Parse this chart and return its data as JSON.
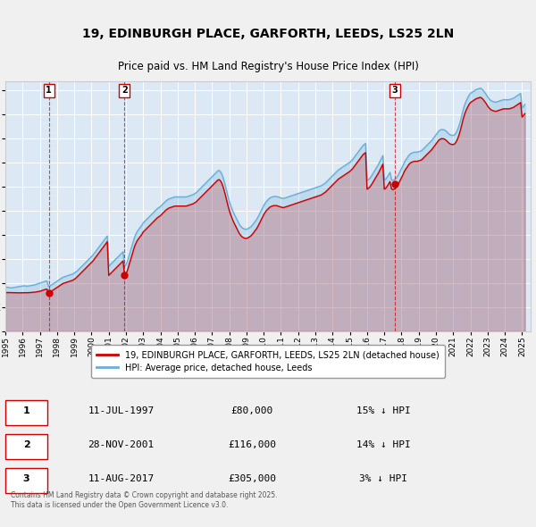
{
  "title": "19, EDINBURGH PLACE, GARFORTH, LEEDS, LS25 2LN",
  "subtitle": "Price paid vs. HM Land Registry's House Price Index (HPI)",
  "ylim": [
    0,
    520000
  ],
  "xlim_start": 1995.0,
  "xlim_end": 2025.5,
  "background_color": "#dce9f5",
  "grid_color": "#ffffff",
  "hpi_color": "#6baed6",
  "price_color": "#cc0000",
  "sale_dates": [
    1997.53,
    2001.91,
    2017.61
  ],
  "sale_prices": [
    80000,
    116000,
    305000
  ],
  "sale_labels": [
    "1",
    "2",
    "3"
  ],
  "legend_line1": "19, EDINBURGH PLACE, GARFORTH, LEEDS, LS25 2LN (detached house)",
  "legend_line2": "HPI: Average price, detached house, Leeds",
  "table_entries": [
    {
      "label": "1",
      "date": "11-JUL-1997",
      "price": "£80,000",
      "hpi": "15% ↓ HPI"
    },
    {
      "label": "2",
      "date": "28-NOV-2001",
      "price": "£116,000",
      "hpi": "14% ↓ HPI"
    },
    {
      "label": "3",
      "date": "11-AUG-2017",
      "price": "£305,000",
      "hpi": "3% ↓ HPI"
    }
  ],
  "footnote": "Contains HM Land Registry data © Crown copyright and database right 2025.\nThis data is licensed under the Open Government Licence v3.0.",
  "hpi_years": [
    1995.0,
    1995.083,
    1995.167,
    1995.25,
    1995.333,
    1995.417,
    1995.5,
    1995.583,
    1995.667,
    1995.75,
    1995.833,
    1995.917,
    1996.0,
    1996.083,
    1996.167,
    1996.25,
    1996.333,
    1996.417,
    1996.5,
    1996.583,
    1996.667,
    1996.75,
    1996.833,
    1996.917,
    1997.0,
    1997.083,
    1997.167,
    1997.25,
    1997.333,
    1997.417,
    1997.5,
    1997.583,
    1997.667,
    1997.75,
    1997.833,
    1997.917,
    1998.0,
    1998.083,
    1998.167,
    1998.25,
    1998.333,
    1998.417,
    1998.5,
    1998.583,
    1998.667,
    1998.75,
    1998.833,
    1998.917,
    1999.0,
    1999.083,
    1999.167,
    1999.25,
    1999.333,
    1999.417,
    1999.5,
    1999.583,
    1999.667,
    1999.75,
    1999.833,
    1999.917,
    2000.0,
    2000.083,
    2000.167,
    2000.25,
    2000.333,
    2000.417,
    2000.5,
    2000.583,
    2000.667,
    2000.75,
    2000.833,
    2000.917,
    2001.0,
    2001.083,
    2001.167,
    2001.25,
    2001.333,
    2001.417,
    2001.5,
    2001.583,
    2001.667,
    2001.75,
    2001.833,
    2001.917,
    2002.0,
    2002.083,
    2002.167,
    2002.25,
    2002.333,
    2002.417,
    2002.5,
    2002.583,
    2002.667,
    2002.75,
    2002.833,
    2002.917,
    2003.0,
    2003.083,
    2003.167,
    2003.25,
    2003.333,
    2003.417,
    2003.5,
    2003.583,
    2003.667,
    2003.75,
    2003.833,
    2003.917,
    2004.0,
    2004.083,
    2004.167,
    2004.25,
    2004.333,
    2004.417,
    2004.5,
    2004.583,
    2004.667,
    2004.75,
    2004.833,
    2004.917,
    2005.0,
    2005.083,
    2005.167,
    2005.25,
    2005.333,
    2005.417,
    2005.5,
    2005.583,
    2005.667,
    2005.75,
    2005.833,
    2005.917,
    2006.0,
    2006.083,
    2006.167,
    2006.25,
    2006.333,
    2006.417,
    2006.5,
    2006.583,
    2006.667,
    2006.75,
    2006.833,
    2006.917,
    2007.0,
    2007.083,
    2007.167,
    2007.25,
    2007.333,
    2007.417,
    2007.5,
    2007.583,
    2007.667,
    2007.75,
    2007.833,
    2007.917,
    2008.0,
    2008.083,
    2008.167,
    2008.25,
    2008.333,
    2008.417,
    2008.5,
    2008.583,
    2008.667,
    2008.75,
    2008.833,
    2008.917,
    2009.0,
    2009.083,
    2009.167,
    2009.25,
    2009.333,
    2009.417,
    2009.5,
    2009.583,
    2009.667,
    2009.75,
    2009.833,
    2009.917,
    2010.0,
    2010.083,
    2010.167,
    2010.25,
    2010.333,
    2010.417,
    2010.5,
    2010.583,
    2010.667,
    2010.75,
    2010.833,
    2010.917,
    2011.0,
    2011.083,
    2011.167,
    2011.25,
    2011.333,
    2011.417,
    2011.5,
    2011.583,
    2011.667,
    2011.75,
    2011.833,
    2011.917,
    2012.0,
    2012.083,
    2012.167,
    2012.25,
    2012.333,
    2012.417,
    2012.5,
    2012.583,
    2012.667,
    2012.75,
    2012.833,
    2012.917,
    2013.0,
    2013.083,
    2013.167,
    2013.25,
    2013.333,
    2013.417,
    2013.5,
    2013.583,
    2013.667,
    2013.75,
    2013.833,
    2013.917,
    2014.0,
    2014.083,
    2014.167,
    2014.25,
    2014.333,
    2014.417,
    2014.5,
    2014.583,
    2014.667,
    2014.75,
    2014.833,
    2014.917,
    2015.0,
    2015.083,
    2015.167,
    2015.25,
    2015.333,
    2015.417,
    2015.5,
    2015.583,
    2015.667,
    2015.75,
    2015.833,
    2015.917,
    2016.0,
    2016.083,
    2016.167,
    2016.25,
    2016.333,
    2016.417,
    2016.5,
    2016.583,
    2016.667,
    2016.75,
    2016.833,
    2016.917,
    2017.0,
    2017.083,
    2017.167,
    2017.25,
    2017.333,
    2017.417,
    2017.5,
    2017.583,
    2017.667,
    2017.75,
    2017.833,
    2017.917,
    2018.0,
    2018.083,
    2018.167,
    2018.25,
    2018.333,
    2018.417,
    2018.5,
    2018.583,
    2018.667,
    2018.75,
    2018.833,
    2018.917,
    2019.0,
    2019.083,
    2019.167,
    2019.25,
    2019.333,
    2019.417,
    2019.5,
    2019.583,
    2019.667,
    2019.75,
    2019.833,
    2019.917,
    2020.0,
    2020.083,
    2020.167,
    2020.25,
    2020.333,
    2020.417,
    2020.5,
    2020.583,
    2020.667,
    2020.75,
    2020.833,
    2020.917,
    2021.0,
    2021.083,
    2021.167,
    2021.25,
    2021.333,
    2021.417,
    2021.5,
    2021.583,
    2021.667,
    2021.75,
    2021.833,
    2021.917,
    2022.0,
    2022.083,
    2022.167,
    2022.25,
    2022.333,
    2022.417,
    2022.5,
    2022.583,
    2022.667,
    2022.75,
    2022.833,
    2022.917,
    2023.0,
    2023.083,
    2023.167,
    2023.25,
    2023.333,
    2023.417,
    2023.5,
    2023.583,
    2023.667,
    2023.75,
    2023.833,
    2023.917,
    2024.0,
    2024.083,
    2024.167,
    2024.25,
    2024.333,
    2024.417,
    2024.5,
    2024.583,
    2024.667,
    2024.75,
    2024.833,
    2024.917,
    2025.0,
    2025.083,
    2025.167
  ],
  "hpi_vals": [
    92000,
    91500,
    91000,
    90500,
    90000,
    90500,
    91000,
    91500,
    92000,
    92500,
    93000,
    93500,
    94000,
    94500,
    94000,
    93500,
    94000,
    94500,
    95000,
    95500,
    96000,
    97000,
    98000,
    99000,
    100000,
    101000,
    102000,
    103000,
    104000,
    104500,
    93000,
    94000,
    96000,
    98000,
    100000,
    102000,
    104000,
    106000,
    108000,
    110000,
    112000,
    113000,
    114000,
    115000,
    116000,
    117000,
    118000,
    119000,
    121000,
    123000,
    125000,
    128000,
    131000,
    134000,
    137000,
    140000,
    143000,
    146000,
    149000,
    152000,
    155000,
    158000,
    162000,
    166000,
    170000,
    174000,
    178000,
    182000,
    186000,
    190000,
    194000,
    198000,
    135000,
    138000,
    141000,
    144000,
    147000,
    150000,
    153000,
    156000,
    159000,
    162000,
    165000,
    135000,
    138000,
    145000,
    155000,
    165000,
    175000,
    185000,
    195000,
    202000,
    208000,
    212000,
    216000,
    220000,
    225000,
    228000,
    231000,
    234000,
    237000,
    240000,
    243000,
    246000,
    249000,
    252000,
    255000,
    257000,
    259000,
    262000,
    265000,
    268000,
    271000,
    273000,
    275000,
    276000,
    277000,
    278000,
    279000,
    279000,
    279000,
    279000,
    279000,
    279000,
    279000,
    279000,
    279000,
    280000,
    281000,
    282000,
    283000,
    284000,
    286000,
    288000,
    291000,
    294000,
    297000,
    300000,
    303000,
    306000,
    309000,
    312000,
    315000,
    318000,
    321000,
    324000,
    327000,
    330000,
    333000,
    334000,
    331000,
    325000,
    316000,
    305000,
    293000,
    281000,
    270000,
    261000,
    253000,
    246000,
    240000,
    234000,
    228000,
    222000,
    218000,
    215000,
    213000,
    212000,
    212000,
    213000,
    215000,
    217000,
    220000,
    224000,
    228000,
    232000,
    237000,
    243000,
    249000,
    255000,
    261000,
    266000,
    270000,
    273000,
    276000,
    278000,
    279000,
    280000,
    280000,
    280000,
    279000,
    278000,
    277000,
    276000,
    276000,
    277000,
    278000,
    279000,
    280000,
    281000,
    282000,
    283000,
    284000,
    285000,
    286000,
    287000,
    288000,
    289000,
    290000,
    291000,
    292000,
    293000,
    294000,
    295000,
    296000,
    297000,
    298000,
    299000,
    300000,
    301000,
    302000,
    304000,
    306000,
    308000,
    311000,
    314000,
    317000,
    320000,
    323000,
    326000,
    329000,
    332000,
    335000,
    337000,
    339000,
    341000,
    343000,
    345000,
    347000,
    349000,
    351000,
    354000,
    357000,
    361000,
    365000,
    369000,
    373000,
    377000,
    381000,
    385000,
    388000,
    390000,
    313000,
    315000,
    318000,
    322000,
    327000,
    332000,
    337000,
    342000,
    347000,
    353000,
    359000,
    365000,
    314000,
    316000,
    320000,
    325000,
    330000,
    315000,
    313000,
    315000,
    317000,
    321000,
    326000,
    332000,
    338000,
    344000,
    351000,
    356000,
    360000,
    365000,
    368000,
    370000,
    371000,
    372000,
    372000,
    372000,
    373000,
    374000,
    375000,
    378000,
    381000,
    384000,
    387000,
    390000,
    393000,
    396000,
    400000,
    404000,
    408000,
    412000,
    416000,
    418000,
    419000,
    419000,
    418000,
    416000,
    413000,
    410000,
    408000,
    407000,
    407000,
    408000,
    412000,
    418000,
    426000,
    436000,
    448000,
    460000,
    470000,
    478000,
    484000,
    490000,
    494000,
    496000,
    498000,
    500000,
    502000,
    503000,
    504000,
    505000,
    503000,
    500000,
    496000,
    492000,
    487000,
    483000,
    480000,
    478000,
    477000,
    476000,
    476000,
    477000,
    478000,
    479000,
    480000,
    481000,
    481000,
    481000,
    481000,
    481000,
    482000,
    483000,
    484000,
    486000,
    488000,
    490000,
    492000,
    494000,
    464000,
    467000,
    471000,
    476000,
    481000,
    486000,
    490000,
    494000,
    498000,
    500000,
    501000,
    501000,
    464000,
    467000,
    472000
  ],
  "price_years": [
    1995.0,
    1995.083,
    1995.167,
    1995.25,
    1995.333,
    1995.417,
    1995.5,
    1995.583,
    1995.667,
    1995.75,
    1995.833,
    1995.917,
    1996.0,
    1996.083,
    1996.167,
    1996.25,
    1996.333,
    1996.417,
    1996.5,
    1996.583,
    1996.667,
    1996.75,
    1996.833,
    1996.917,
    1997.0,
    1997.083,
    1997.167,
    1997.25,
    1997.333,
    1997.417,
    1997.5,
    1997.583,
    1997.667,
    1997.75,
    1997.833,
    1997.917,
    1998.0,
    1998.083,
    1998.167,
    1998.25,
    1998.333,
    1998.417,
    1998.5,
    1998.583,
    1998.667,
    1998.75,
    1998.833,
    1998.917,
    1999.0,
    1999.083,
    1999.167,
    1999.25,
    1999.333,
    1999.417,
    1999.5,
    1999.583,
    1999.667,
    1999.75,
    1999.833,
    1999.917,
    2000.0,
    2000.083,
    2000.167,
    2000.25,
    2000.333,
    2000.417,
    2000.5,
    2000.583,
    2000.667,
    2000.75,
    2000.833,
    2000.917,
    2001.0,
    2001.083,
    2001.167,
    2001.25,
    2001.333,
    2001.417,
    2001.5,
    2001.583,
    2001.667,
    2001.75,
    2001.833,
    2001.917,
    2002.0,
    2002.083,
    2002.167,
    2002.25,
    2002.333,
    2002.417,
    2002.5,
    2002.583,
    2002.667,
    2002.75,
    2002.833,
    2002.917,
    2003.0,
    2003.083,
    2003.167,
    2003.25,
    2003.333,
    2003.417,
    2003.5,
    2003.583,
    2003.667,
    2003.75,
    2003.833,
    2003.917,
    2004.0,
    2004.083,
    2004.167,
    2004.25,
    2004.333,
    2004.417,
    2004.5,
    2004.583,
    2004.667,
    2004.75,
    2004.833,
    2004.917,
    2005.0,
    2005.083,
    2005.167,
    2005.25,
    2005.333,
    2005.417,
    2005.5,
    2005.583,
    2005.667,
    2005.75,
    2005.833,
    2005.917,
    2006.0,
    2006.083,
    2006.167,
    2006.25,
    2006.333,
    2006.417,
    2006.5,
    2006.583,
    2006.667,
    2006.75,
    2006.833,
    2006.917,
    2007.0,
    2007.083,
    2007.167,
    2007.25,
    2007.333,
    2007.417,
    2007.5,
    2007.583,
    2007.667,
    2007.75,
    2007.833,
    2007.917,
    2008.0,
    2008.083,
    2008.167,
    2008.25,
    2008.333,
    2008.417,
    2008.5,
    2008.583,
    2008.667,
    2008.75,
    2008.833,
    2008.917,
    2009.0,
    2009.083,
    2009.167,
    2009.25,
    2009.333,
    2009.417,
    2009.5,
    2009.583,
    2009.667,
    2009.75,
    2009.833,
    2009.917,
    2010.0,
    2010.083,
    2010.167,
    2010.25,
    2010.333,
    2010.417,
    2010.5,
    2010.583,
    2010.667,
    2010.75,
    2010.833,
    2010.917,
    2011.0,
    2011.083,
    2011.167,
    2011.25,
    2011.333,
    2011.417,
    2011.5,
    2011.583,
    2011.667,
    2011.75,
    2011.833,
    2011.917,
    2012.0,
    2012.083,
    2012.167,
    2012.25,
    2012.333,
    2012.417,
    2012.5,
    2012.583,
    2012.667,
    2012.75,
    2012.833,
    2012.917,
    2013.0,
    2013.083,
    2013.167,
    2013.25,
    2013.333,
    2013.417,
    2013.5,
    2013.583,
    2013.667,
    2013.75,
    2013.833,
    2013.917,
    2014.0,
    2014.083,
    2014.167,
    2014.25,
    2014.333,
    2014.417,
    2014.5,
    2014.583,
    2014.667,
    2014.75,
    2014.833,
    2014.917,
    2015.0,
    2015.083,
    2015.167,
    2015.25,
    2015.333,
    2015.417,
    2015.5,
    2015.583,
    2015.667,
    2015.75,
    2015.833,
    2015.917,
    2016.0,
    2016.083,
    2016.167,
    2016.25,
    2016.333,
    2016.417,
    2016.5,
    2016.583,
    2016.667,
    2016.75,
    2016.833,
    2016.917,
    2017.0,
    2017.083,
    2017.167,
    2017.25,
    2017.333,
    2017.417,
    2017.5,
    2017.583,
    2017.667,
    2017.75,
    2017.833,
    2017.917,
    2018.0,
    2018.083,
    2018.167,
    2018.25,
    2018.333,
    2018.417,
    2018.5,
    2018.583,
    2018.667,
    2018.75,
    2018.833,
    2018.917,
    2019.0,
    2019.083,
    2019.167,
    2019.25,
    2019.333,
    2019.417,
    2019.5,
    2019.583,
    2019.667,
    2019.75,
    2019.833,
    2019.917,
    2020.0,
    2020.083,
    2020.167,
    2020.25,
    2020.333,
    2020.417,
    2020.5,
    2020.583,
    2020.667,
    2020.75,
    2020.833,
    2020.917,
    2021.0,
    2021.083,
    2021.167,
    2021.25,
    2021.333,
    2021.417,
    2021.5,
    2021.583,
    2021.667,
    2021.75,
    2021.833,
    2021.917,
    2022.0,
    2022.083,
    2022.167,
    2022.25,
    2022.333,
    2022.417,
    2022.5,
    2022.583,
    2022.667,
    2022.75,
    2022.833,
    2022.917,
    2023.0,
    2023.083,
    2023.167,
    2023.25,
    2023.333,
    2023.417,
    2023.5,
    2023.583,
    2023.667,
    2023.75,
    2023.833,
    2023.917,
    2024.0,
    2024.083,
    2024.167,
    2024.25,
    2024.333,
    2024.417,
    2024.5,
    2024.583,
    2024.667,
    2024.75,
    2024.833,
    2024.917,
    2025.0,
    2025.083,
    2025.167
  ],
  "price_vals": [
    80000,
    80200,
    80400,
    80300,
    80200,
    80100,
    80000,
    79900,
    79800,
    79700,
    79800,
    79900,
    80000,
    80200,
    80100,
    80000,
    80200,
    80400,
    80600,
    80800,
    81000,
    81500,
    82000,
    82500,
    83000,
    84000,
    85000,
    86000,
    87000,
    87500,
    80000,
    81000,
    83000,
    85000,
    87000,
    89000,
    91000,
    93000,
    95000,
    97000,
    99000,
    100000,
    101000,
    102000,
    103000,
    104000,
    105000,
    106000,
    108000,
    110000,
    113000,
    116000,
    119000,
    122000,
    125000,
    128000,
    131000,
    134000,
    137000,
    140000,
    143000,
    146000,
    150000,
    154000,
    158000,
    162000,
    166000,
    170000,
    174000,
    178000,
    182000,
    186000,
    116000,
    119000,
    122000,
    125000,
    128000,
    131000,
    134000,
    137000,
    140000,
    143000,
    146000,
    116000,
    119000,
    126000,
    136000,
    146000,
    156000,
    166000,
    176000,
    183000,
    189000,
    193000,
    197000,
    201000,
    206000,
    209000,
    212000,
    215000,
    218000,
    221000,
    224000,
    227000,
    230000,
    233000,
    236000,
    238000,
    240000,
    243000,
    246000,
    249000,
    252000,
    254000,
    256000,
    257000,
    258000,
    259000,
    260000,
    260000,
    260000,
    260000,
    260000,
    260000,
    260000,
    260000,
    260000,
    261000,
    262000,
    263000,
    264000,
    265000,
    267000,
    269000,
    272000,
    275000,
    278000,
    281000,
    284000,
    287000,
    290000,
    293000,
    296000,
    299000,
    302000,
    305000,
    308000,
    311000,
    314000,
    315000,
    312000,
    306000,
    297000,
    286000,
    274000,
    262000,
    251000,
    242000,
    234000,
    227000,
    221000,
    215000,
    209000,
    203000,
    199000,
    196000,
    194000,
    193000,
    193000,
    194000,
    196000,
    198000,
    201000,
    205000,
    209000,
    213000,
    218000,
    224000,
    230000,
    236000,
    242000,
    247000,
    251000,
    254000,
    257000,
    259000,
    260000,
    261000,
    261000,
    261000,
    260000,
    259000,
    258000,
    257000,
    257000,
    258000,
    259000,
    260000,
    261000,
    262000,
    263000,
    264000,
    265000,
    266000,
    267000,
    268000,
    269000,
    270000,
    271000,
    272000,
    273000,
    274000,
    275000,
    276000,
    277000,
    278000,
    279000,
    280000,
    281000,
    282000,
    283000,
    285000,
    287000,
    289000,
    292000,
    295000,
    298000,
    301000,
    304000,
    307000,
    310000,
    313000,
    316000,
    318000,
    320000,
    322000,
    324000,
    326000,
    328000,
    330000,
    332000,
    335000,
    338000,
    342000,
    346000,
    350000,
    354000,
    358000,
    362000,
    366000,
    369000,
    371000,
    295000,
    297000,
    300000,
    304000,
    309000,
    314000,
    319000,
    324000,
    329000,
    335000,
    341000,
    347000,
    295000,
    297000,
    301000,
    306000,
    311000,
    296000,
    294000,
    296000,
    298000,
    302000,
    307000,
    313000,
    319000,
    325000,
    332000,
    337000,
    341000,
    346000,
    349000,
    351000,
    352000,
    353000,
    353000,
    353000,
    354000,
    355000,
    356000,
    359000,
    362000,
    365000,
    368000,
    371000,
    374000,
    377000,
    381000,
    385000,
    389000,
    393000,
    397000,
    399000,
    400000,
    400000,
    399000,
    397000,
    394000,
    391000,
    389000,
    388000,
    388000,
    389000,
    393000,
    399000,
    407000,
    417000,
    429000,
    441000,
    451000,
    459000,
    465000,
    471000,
    475000,
    477000,
    479000,
    481000,
    483000,
    484000,
    485000,
    486000,
    484000,
    481000,
    477000,
    473000,
    468000,
    464000,
    461000,
    459000,
    458000,
    457000,
    457000,
    458000,
    459000,
    460000,
    461000,
    462000,
    462000,
    462000,
    462000,
    462000,
    463000,
    464000,
    465000,
    467000,
    469000,
    471000,
    473000,
    475000,
    445000,
    448000,
    452000,
    457000,
    462000,
    467000,
    471000,
    475000,
    479000,
    481000,
    482000,
    482000,
    445000,
    448000,
    453000
  ]
}
